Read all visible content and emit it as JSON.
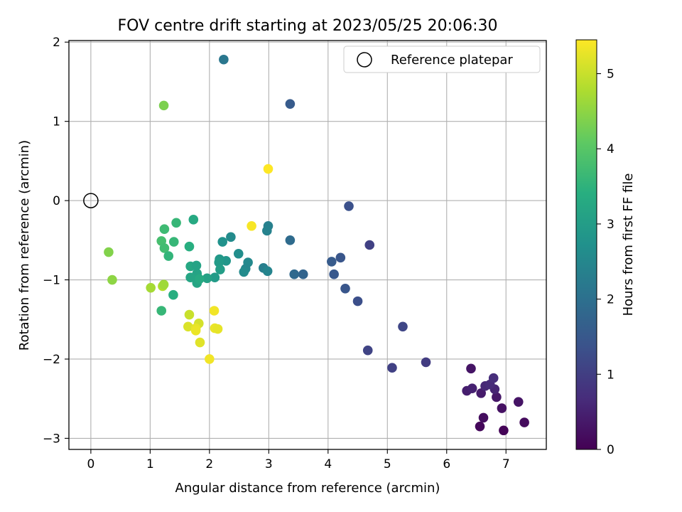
{
  "chart_data": {
    "type": "scatter",
    "title": "FOV centre drift starting at 2023/05/25 20:06:30",
    "xlabel": "Angular distance from reference (arcmin)",
    "ylabel": "Rotation from reference (arcmin)",
    "xlim": [
      -0.37,
      7.68
    ],
    "ylim": [
      -3.14,
      2.02
    ],
    "xticks": [
      0,
      1,
      2,
      3,
      4,
      5,
      6,
      7
    ],
    "yticks": [
      -3,
      -2,
      -1,
      0,
      1,
      2
    ],
    "grid": true,
    "legend": {
      "position": "top-right",
      "entries": [
        {
          "label": "Reference platepar",
          "marker": "open-circle"
        }
      ]
    },
    "reference_point": {
      "x": 0,
      "y": 0
    },
    "colorbar": {
      "label": "Hours from first FF file",
      "range": [
        0,
        5.45
      ],
      "ticks": [
        0,
        1,
        2,
        3,
        4,
        5
      ],
      "colormap": "viridis"
    },
    "points": [
      {
        "x": 6.96,
        "y": -2.9,
        "c": 0.05
      },
      {
        "x": 6.56,
        "y": -2.85,
        "c": 0.1
      },
      {
        "x": 7.31,
        "y": -2.8,
        "c": 0.15
      },
      {
        "x": 6.62,
        "y": -2.74,
        "c": 0.2
      },
      {
        "x": 6.93,
        "y": -2.62,
        "c": 0.25
      },
      {
        "x": 7.21,
        "y": -2.54,
        "c": 0.3
      },
      {
        "x": 6.84,
        "y": -2.48,
        "c": 0.35
      },
      {
        "x": 6.58,
        "y": -2.43,
        "c": 0.4
      },
      {
        "x": 6.34,
        "y": -2.4,
        "c": 0.45
      },
      {
        "x": 6.43,
        "y": -2.37,
        "c": 0.5
      },
      {
        "x": 6.81,
        "y": -2.38,
        "c": 0.55
      },
      {
        "x": 6.65,
        "y": -2.34,
        "c": 0.6
      },
      {
        "x": 6.73,
        "y": -2.32,
        "c": 0.65
      },
      {
        "x": 6.79,
        "y": -2.24,
        "c": 0.7
      },
      {
        "x": 6.41,
        "y": -2.12,
        "c": 0.3
      },
      {
        "x": 5.65,
        "y": -2.04,
        "c": 0.95
      },
      {
        "x": 5.08,
        "y": -2.11,
        "c": 1.05
      },
      {
        "x": 4.67,
        "y": -1.89,
        "c": 1.1
      },
      {
        "x": 5.26,
        "y": -1.59,
        "c": 1.15
      },
      {
        "x": 4.5,
        "y": -1.27,
        "c": 1.3
      },
      {
        "x": 4.29,
        "y": -1.11,
        "c": 1.45
      },
      {
        "x": 4.1,
        "y": -0.93,
        "c": 1.5
      },
      {
        "x": 4.06,
        "y": -0.77,
        "c": 1.55
      },
      {
        "x": 4.21,
        "y": -0.72,
        "c": 1.45
      },
      {
        "x": 4.7,
        "y": -0.56,
        "c": 1.05
      },
      {
        "x": 4.35,
        "y": -0.07,
        "c": 1.35
      },
      {
        "x": 3.58,
        "y": -0.93,
        "c": 1.75
      },
      {
        "x": 3.43,
        "y": -0.93,
        "c": 1.85
      },
      {
        "x": 3.36,
        "y": -0.5,
        "c": 1.9
      },
      {
        "x": 3.36,
        "y": 1.22,
        "c": 1.55
      },
      {
        "x": 2.24,
        "y": 1.78,
        "c": 2.15
      },
      {
        "x": 2.99,
        "y": -0.32,
        "c": 2.35
      },
      {
        "x": 2.97,
        "y": -0.38,
        "c": 2.4
      },
      {
        "x": 2.91,
        "y": -0.85,
        "c": 2.3
      },
      {
        "x": 2.98,
        "y": -0.89,
        "c": 2.45
      },
      {
        "x": 2.65,
        "y": -0.78,
        "c": 2.55
      },
      {
        "x": 2.61,
        "y": -0.86,
        "c": 2.5
      },
      {
        "x": 2.58,
        "y": -0.9,
        "c": 2.6
      },
      {
        "x": 2.49,
        "y": -0.67,
        "c": 2.65
      },
      {
        "x": 2.36,
        "y": -0.46,
        "c": 2.6
      },
      {
        "x": 2.22,
        "y": -0.52,
        "c": 2.75
      },
      {
        "x": 2.28,
        "y": -0.76,
        "c": 2.85
      },
      {
        "x": 2.17,
        "y": -0.74,
        "c": 2.9
      },
      {
        "x": 2.16,
        "y": -0.78,
        "c": 2.95
      },
      {
        "x": 2.18,
        "y": -0.87,
        "c": 3.0
      },
      {
        "x": 2.09,
        "y": -0.97,
        "c": 2.95
      },
      {
        "x": 1.96,
        "y": -0.98,
        "c": 3.1
      },
      {
        "x": 1.79,
        "y": -0.92,
        "c": 3.15
      },
      {
        "x": 1.79,
        "y": -1.04,
        "c": 3.2
      },
      {
        "x": 1.83,
        "y": -0.99,
        "c": 3.3
      },
      {
        "x": 1.68,
        "y": -0.97,
        "c": 3.2
      },
      {
        "x": 1.68,
        "y": -0.83,
        "c": 3.25
      },
      {
        "x": 1.78,
        "y": -0.82,
        "c": 3.15
      },
      {
        "x": 1.66,
        "y": -0.58,
        "c": 3.4
      },
      {
        "x": 1.73,
        "y": -0.24,
        "c": 3.3
      },
      {
        "x": 1.44,
        "y": -0.28,
        "c": 3.6
      },
      {
        "x": 1.4,
        "y": -0.52,
        "c": 3.6
      },
      {
        "x": 1.24,
        "y": -0.36,
        "c": 3.7
      },
      {
        "x": 1.19,
        "y": -0.51,
        "c": 3.8
      },
      {
        "x": 1.24,
        "y": -0.6,
        "c": 3.75
      },
      {
        "x": 1.31,
        "y": -0.7,
        "c": 3.55
      },
      {
        "x": 1.39,
        "y": -1.19,
        "c": 3.4
      },
      {
        "x": 1.19,
        "y": -1.39,
        "c": 3.6
      },
      {
        "x": 1.23,
        "y": 1.2,
        "c": 4.35
      },
      {
        "x": 0.3,
        "y": -0.65,
        "c": 4.4
      },
      {
        "x": 0.36,
        "y": -1.0,
        "c": 4.5
      },
      {
        "x": 1.01,
        "y": -1.1,
        "c": 4.7
      },
      {
        "x": 1.21,
        "y": -1.08,
        "c": 4.8
      },
      {
        "x": 1.23,
        "y": -1.06,
        "c": 4.65
      },
      {
        "x": 1.66,
        "y": -1.44,
        "c": 5.0
      },
      {
        "x": 1.82,
        "y": -1.55,
        "c": 5.1
      },
      {
        "x": 1.64,
        "y": -1.59,
        "c": 5.15
      },
      {
        "x": 1.77,
        "y": -1.61,
        "c": 5.25
      },
      {
        "x": 1.77,
        "y": -1.64,
        "c": 5.3
      },
      {
        "x": 1.84,
        "y": -1.79,
        "c": 5.2
      },
      {
        "x": 2.08,
        "y": -1.39,
        "c": 5.35
      },
      {
        "x": 2.09,
        "y": -1.61,
        "c": 5.3
      },
      {
        "x": 2.14,
        "y": -1.62,
        "c": 5.25
      },
      {
        "x": 2.0,
        "y": -2.0,
        "c": 5.35
      },
      {
        "x": 2.71,
        "y": -0.32,
        "c": 5.4
      },
      {
        "x": 2.99,
        "y": 0.4,
        "c": 5.45
      }
    ]
  }
}
